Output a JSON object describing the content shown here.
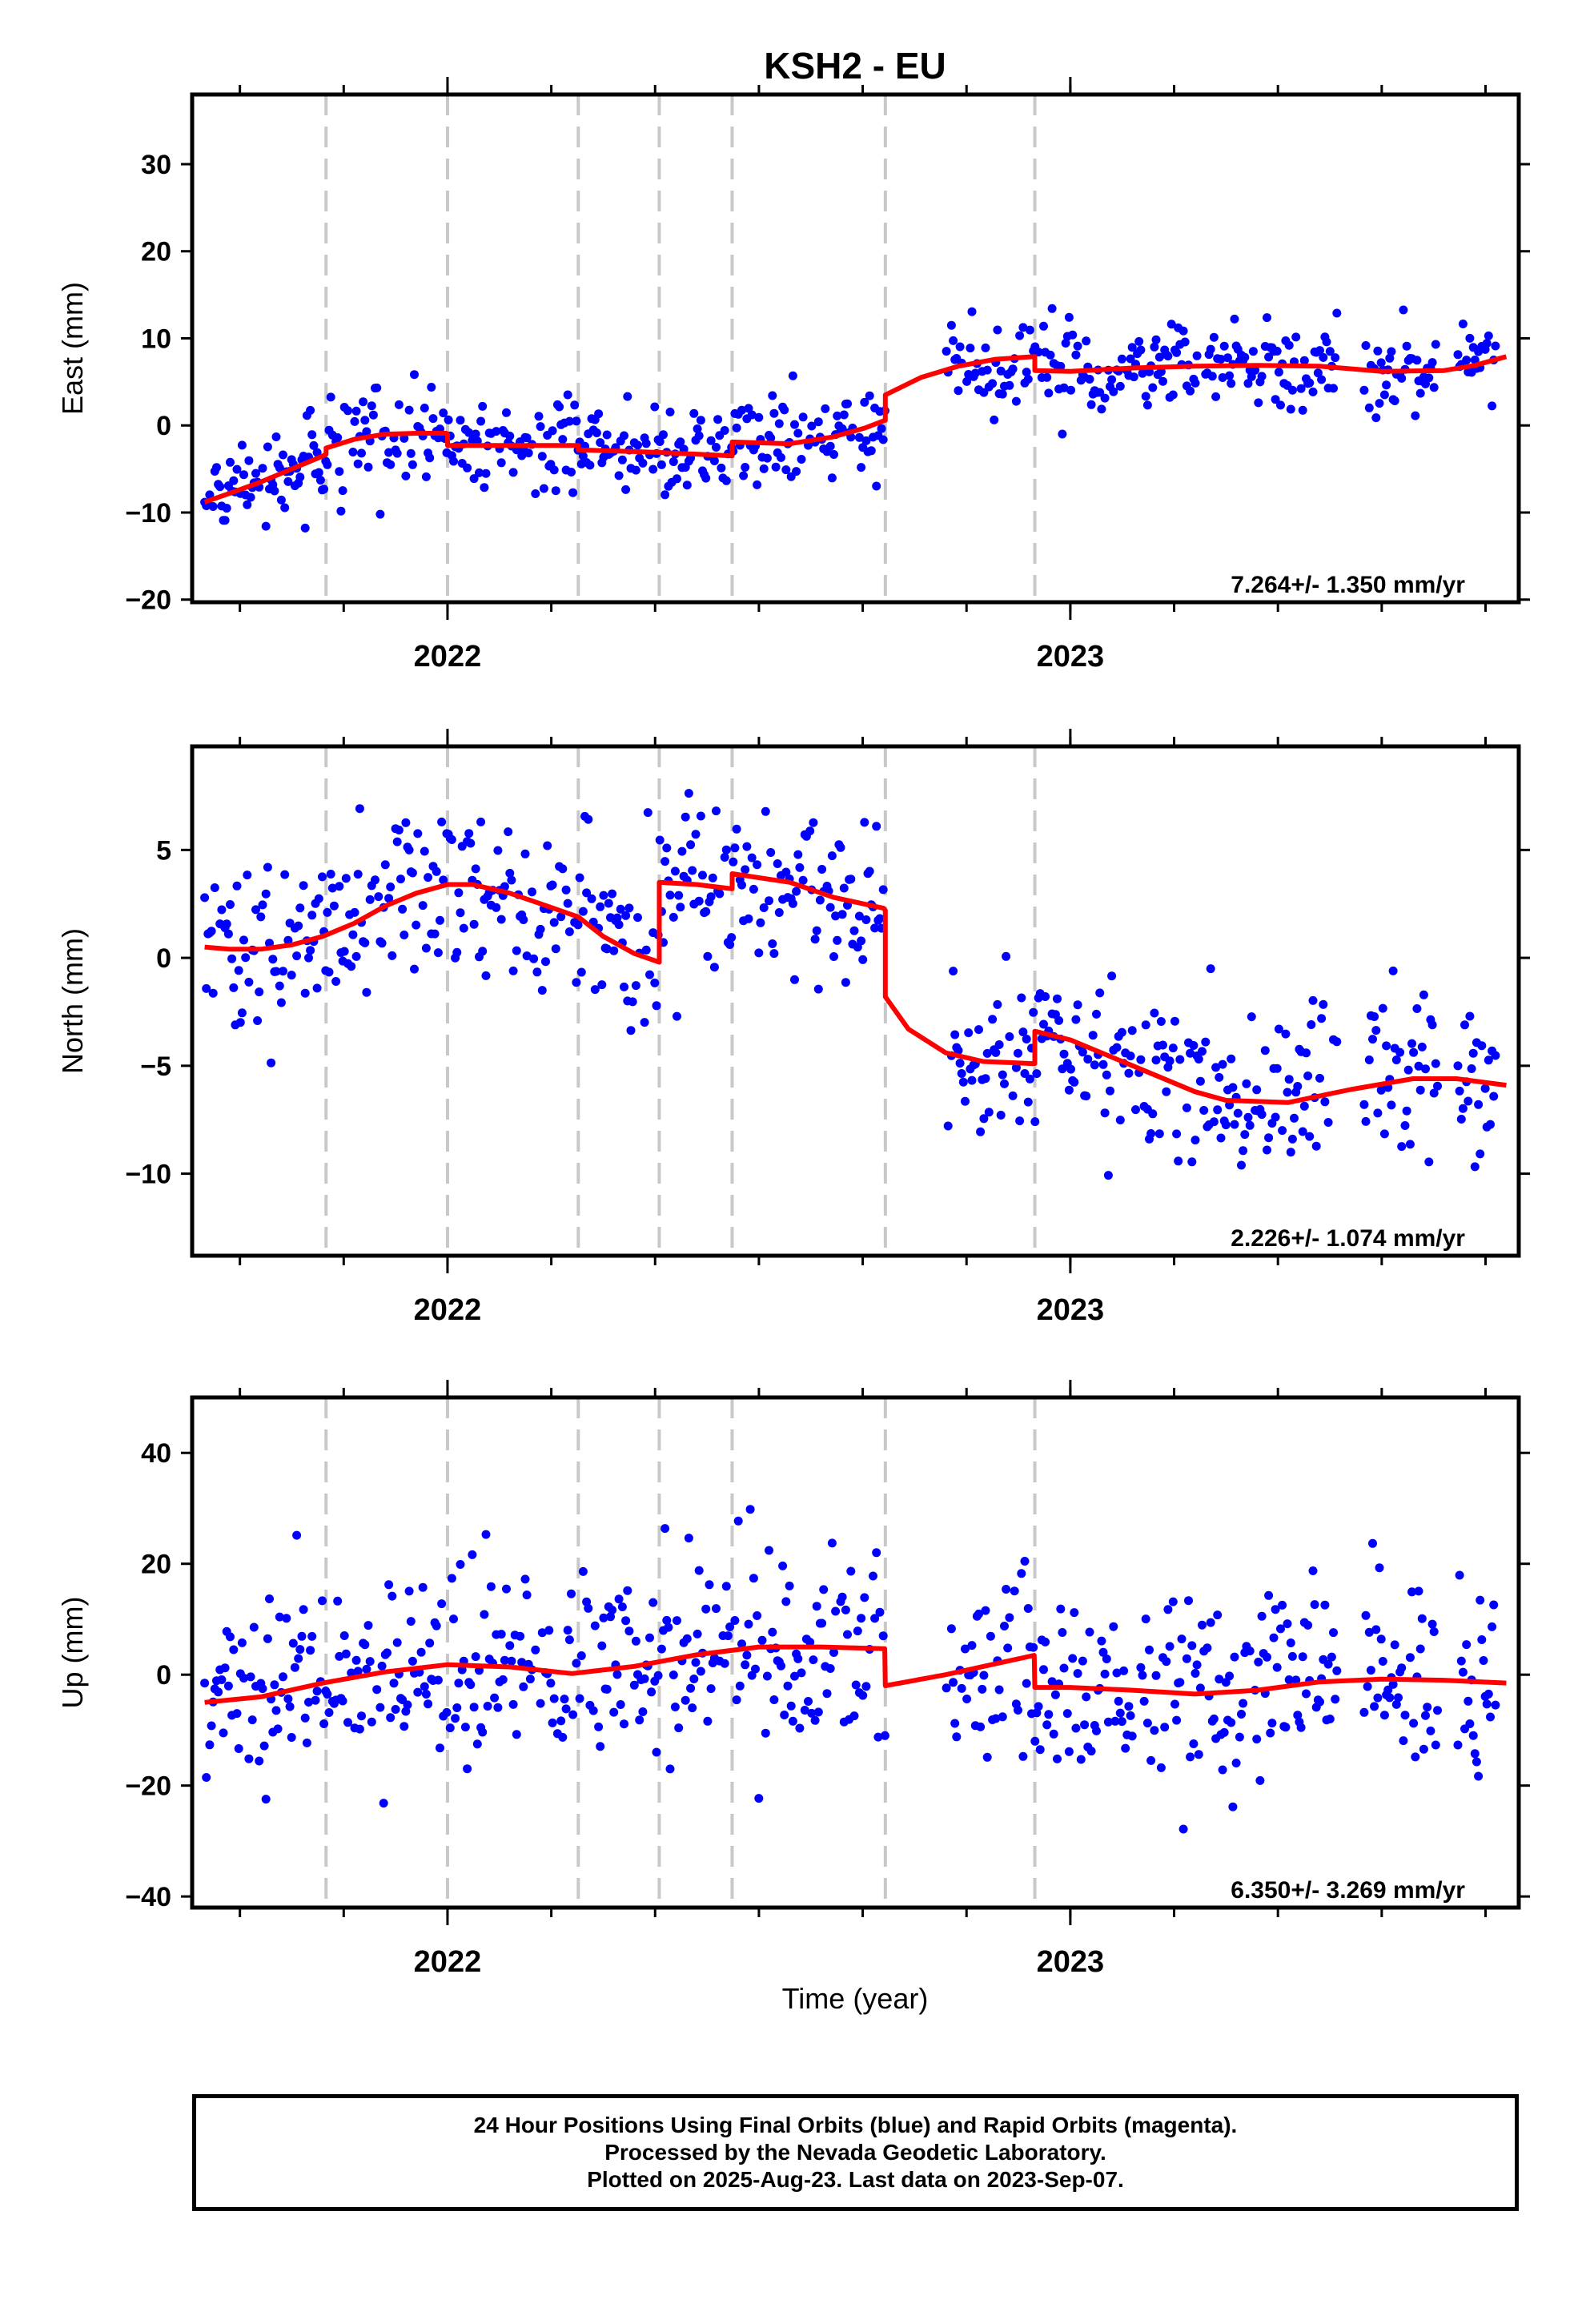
{
  "title": "KSH2 - EU",
  "xlabel": "Time (year)",
  "colors": {
    "points": "#0000ff",
    "model": "#ff0000",
    "breaks": "#c8c8c8",
    "axes": "#000000"
  },
  "caption": [
    "24 Hour Positions Using Final Orbits (blue) and Rapid Orbits (magenta).",
    "Processed by the Nevada Geodetic Laboratory.",
    "Plotted on 2025-Aug-23. Last data on 2023-Sep-07."
  ],
  "chart_data": [
    {
      "type": "scatter",
      "name": "east",
      "ylabel": "East (mm)",
      "xlim": [
        2021.59,
        2023.72
      ],
      "ylim": [
        -20.3,
        38
      ],
      "yticks": [
        -20,
        -10,
        0,
        10,
        20,
        30
      ],
      "xticks": [
        2022,
        2023
      ],
      "rate_label": "7.264+/- 1.350 mm/yr",
      "break_lines": [
        2021.805,
        2022.0,
        2022.21,
        2022.34,
        2022.457,
        2022.703,
        2022.943
      ],
      "model": {
        "x": [
          2021.61,
          2021.65,
          2021.7,
          2021.75,
          2021.8,
          2021.805,
          2021.805,
          2021.85,
          2021.9,
          2021.95,
          2021.998,
          2022.0,
          2022.0,
          2022.1,
          2022.21,
          2022.21,
          2022.3,
          2022.34,
          2022.34,
          2022.4,
          2022.457,
          2022.457,
          2022.55,
          2022.62,
          2022.67,
          2022.703,
          2022.703,
          2022.76,
          2022.82,
          2022.88,
          2022.943,
          2022.943,
          2023.0,
          2023.05,
          2023.1,
          2023.2,
          2023.3,
          2023.4,
          2023.5,
          2023.6,
          2023.65,
          2023.7
        ],
        "y": [
          -8.8,
          -7.8,
          -6.5,
          -5.0,
          -3.5,
          -3.3,
          -2.6,
          -1.6,
          -1.0,
          -0.9,
          -0.9,
          -1.0,
          -2.3,
          -2.3,
          -2.3,
          -2.8,
          -3.0,
          -3.1,
          -3.1,
          -3.3,
          -3.5,
          -1.9,
          -2.1,
          -1.3,
          -0.3,
          0.6,
          3.5,
          5.5,
          6.8,
          7.6,
          7.9,
          6.3,
          6.2,
          6.4,
          6.6,
          6.8,
          6.9,
          6.8,
          6.2,
          6.3,
          6.9,
          7.9
        ]
      }
    },
    {
      "type": "scatter",
      "name": "north",
      "ylabel": "North (mm)",
      "xlim": [
        2021.59,
        2023.72
      ],
      "ylim": [
        -13.8,
        9.8
      ],
      "yticks": [
        -10,
        -5,
        0,
        5
      ],
      "xticks": [
        2022,
        2023
      ],
      "rate_label": "2.226+/- 1.074 mm/yr",
      "break_lines": [
        2021.805,
        2022.0,
        2022.21,
        2022.34,
        2022.457,
        2022.703,
        2022.943
      ],
      "model": {
        "x": [
          2021.61,
          2021.65,
          2021.7,
          2021.75,
          2021.8,
          2021.85,
          2021.9,
          2021.95,
          2022.0,
          2022.04,
          2022.1,
          2022.15,
          2022.21,
          2022.25,
          2022.3,
          2022.34,
          2022.34,
          2022.4,
          2022.457,
          2022.457,
          2022.55,
          2022.62,
          2022.7,
          2022.703,
          2022.703,
          2022.74,
          2022.8,
          2022.86,
          2022.943,
          2022.943,
          2023.0,
          2023.1,
          2023.2,
          2023.25,
          2023.35,
          2023.45,
          2023.55,
          2023.62,
          2023.7
        ],
        "y": [
          0.5,
          0.4,
          0.4,
          0.6,
          1.0,
          1.6,
          2.4,
          3.0,
          3.4,
          3.4,
          3.0,
          2.5,
          1.9,
          1.0,
          0.2,
          -0.2,
          3.5,
          3.4,
          3.2,
          3.9,
          3.5,
          2.8,
          2.3,
          2.2,
          -1.8,
          -3.3,
          -4.4,
          -4.8,
          -4.9,
          -3.4,
          -3.8,
          -5.0,
          -6.2,
          -6.6,
          -6.7,
          -6.1,
          -5.6,
          -5.6,
          -5.9
        ]
      }
    },
    {
      "type": "scatter",
      "name": "up",
      "ylabel": "Up (mm)",
      "xlim": [
        2021.59,
        2023.72
      ],
      "ylim": [
        -42,
        50
      ],
      "yticks": [
        -40,
        -20,
        0,
        20,
        40
      ],
      "xticks": [
        2022,
        2023
      ],
      "rate_label": "6.350+/- 3.269 mm/yr",
      "break_lines": [
        2021.805,
        2022.0,
        2022.21,
        2022.34,
        2022.457,
        2022.703,
        2022.943
      ],
      "model": {
        "x": [
          2021.61,
          2021.7,
          2021.8,
          2021.9,
          2022.0,
          2022.1,
          2022.2,
          2022.3,
          2022.4,
          2022.5,
          2022.6,
          2022.702,
          2022.703,
          2022.8,
          2022.942,
          2022.943,
          2023.0,
          2023.1,
          2023.2,
          2023.3,
          2023.4,
          2023.5,
          2023.6,
          2023.7
        ],
        "y": [
          -5.0,
          -4.0,
          -1.5,
          0.5,
          1.8,
          1.4,
          0.2,
          1.5,
          3.6,
          5.0,
          5.0,
          4.7,
          -2.0,
          0.0,
          3.5,
          -2.3,
          -2.3,
          -2.8,
          -3.5,
          -2.8,
          -1.3,
          -0.8,
          -1.0,
          -1.5
        ]
      }
    }
  ]
}
